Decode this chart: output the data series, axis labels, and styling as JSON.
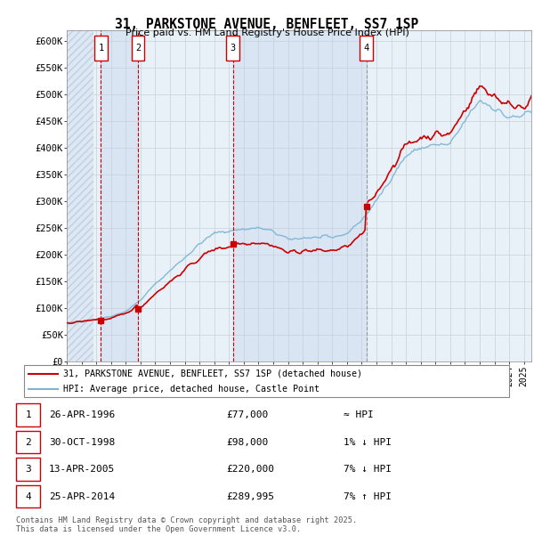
{
  "title": "31, PARKSTONE AVENUE, BENFLEET, SS7 1SP",
  "subtitle": "Price paid vs. HM Land Registry's House Price Index (HPI)",
  "ylim": [
    0,
    620000
  ],
  "xlim_start": 1994.0,
  "xlim_end": 2025.5,
  "sale_dates": [
    1996.32,
    1998.83,
    2005.28,
    2014.32
  ],
  "sale_prices": [
    77000,
    98000,
    220000,
    289995
  ],
  "sale_labels": [
    "1",
    "2",
    "3",
    "4"
  ],
  "legend_line1": "31, PARKSTONE AVENUE, BENFLEET, SS7 1SP (detached house)",
  "legend_line2": "HPI: Average price, detached house, Castle Point",
  "table_rows": [
    [
      "1",
      "26-APR-1996",
      "£77,000",
      "≈ HPI"
    ],
    [
      "2",
      "30-OCT-1998",
      "£98,000",
      "1% ↓ HPI"
    ],
    [
      "3",
      "13-APR-2005",
      "£220,000",
      "7% ↓ HPI"
    ],
    [
      "4",
      "25-APR-2014",
      "£289,995",
      "7% ↑ HPI"
    ]
  ],
  "footer": "Contains HM Land Registry data © Crown copyright and database right 2025.\nThis data is licensed under the Open Government Licence v3.0.",
  "hpi_color": "#7ab3d4",
  "price_color": "#cc0000",
  "vline_color_red": "#cc0000",
  "vline_color_gray": "#999999",
  "box_bg": "#e8f0f8",
  "sale_box_fill_color": "#e8f0f8"
}
